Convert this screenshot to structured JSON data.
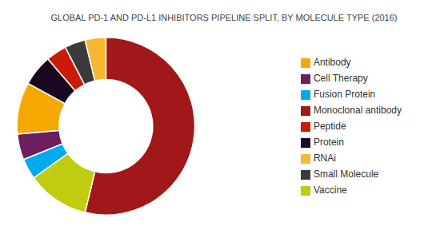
{
  "chart_data": {
    "type": "pie",
    "title": "GLOBAL PD-1 AND PD-L1 INHIBITORS PIPELINE SPLIT, BY MOLECULE TYPE (2016)",
    "categories": [
      "Monoclonal antibody",
      "Vaccine",
      "Fusion Protein",
      "Cell Therapy",
      "Antibody",
      "Protein",
      "Peptide",
      "Small Molecule",
      "RNAi"
    ],
    "values": [
      57,
      12,
      4,
      5,
      10,
      6,
      4,
      4,
      4
    ],
    "colors": [
      "#A01818",
      "#BFCC10",
      "#00AAEE",
      "#6B1F5F",
      "#F5A800",
      "#180820",
      "#CC1A0A",
      "#3A3A3A",
      "#F5B830"
    ]
  }
}
